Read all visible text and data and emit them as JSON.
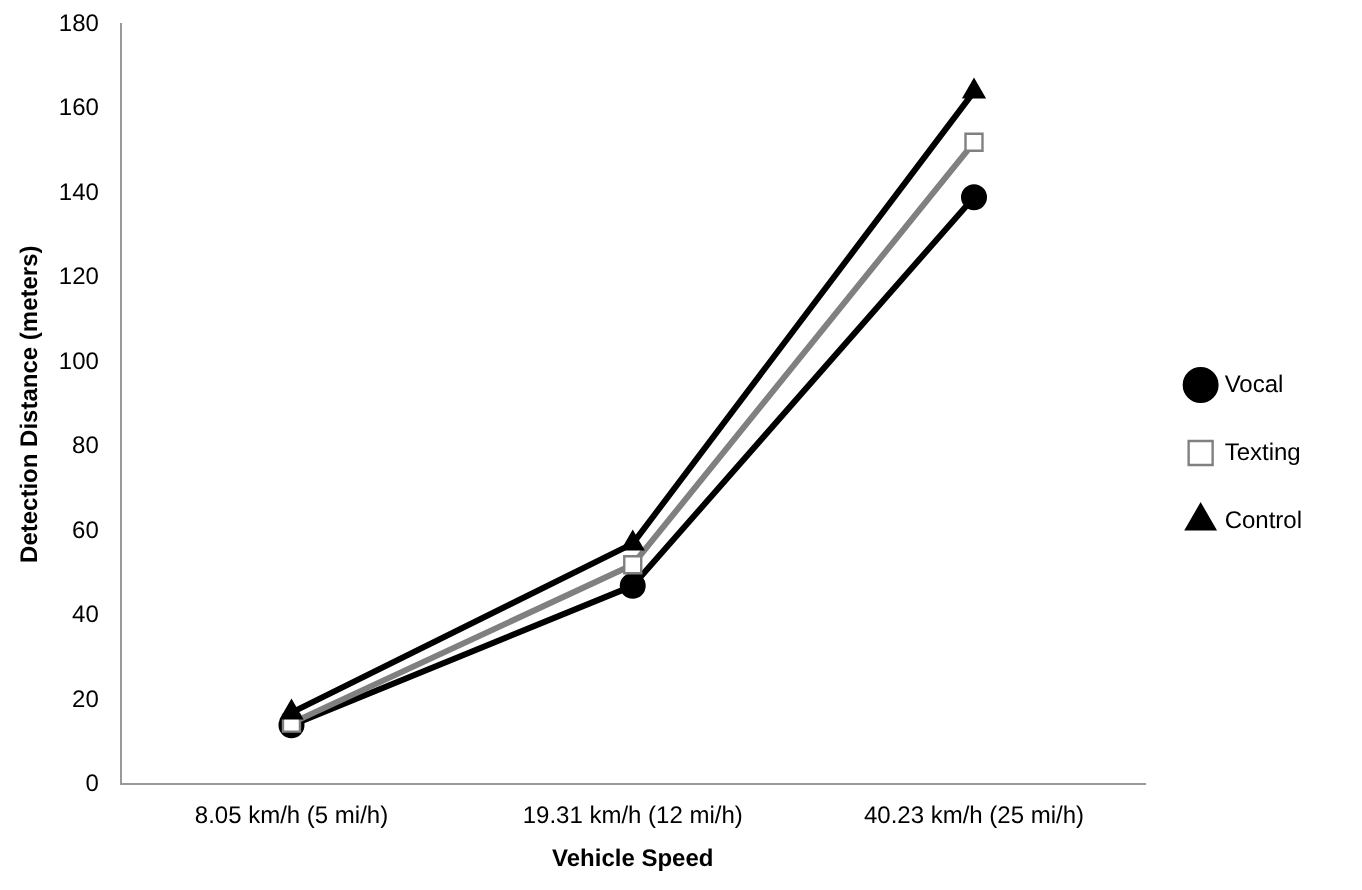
{
  "chart_data": {
    "type": "line",
    "xlabel": "Vehicle Speed",
    "ylabel": "Detection Distance (meters)",
    "categories": [
      "8.05 km/h (5 mi/h)",
      "19.31 km/h (12 mi/h)",
      "40.23 km/h (25 mi/h)"
    ],
    "series": [
      {
        "name": "Vocal",
        "color": "#000000",
        "marker": "circle",
        "values": [
          14,
          47,
          139
        ]
      },
      {
        "name": "Texting",
        "color": "#808080",
        "marker": "square",
        "values": [
          14.5,
          52,
          152
        ]
      },
      {
        "name": "Control",
        "color": "#000000",
        "marker": "triangle",
        "values": [
          17,
          57,
          164
        ]
      }
    ],
    "ylim": [
      0,
      180
    ],
    "yticks": [
      0,
      20,
      40,
      60,
      80,
      100,
      120,
      140,
      160,
      180
    ],
    "grid": false,
    "legend": "right",
    "line_style": "solid"
  }
}
